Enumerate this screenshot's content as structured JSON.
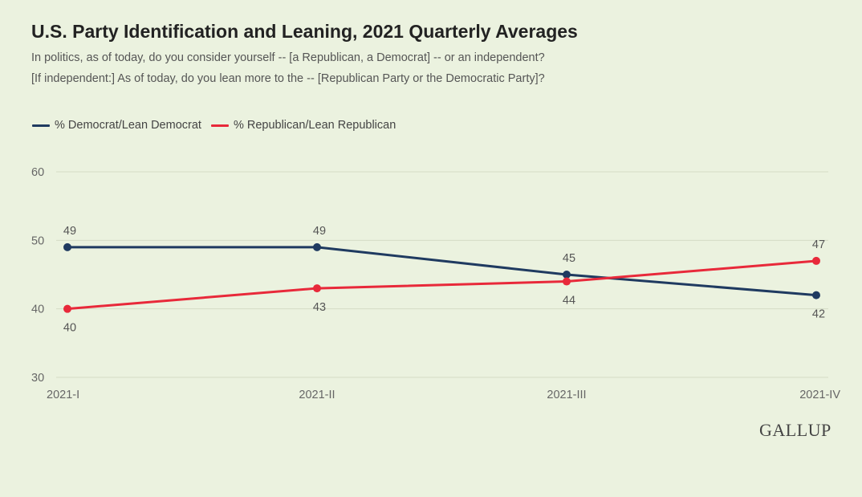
{
  "chart_data": {
    "type": "line",
    "title": "U.S. Party Identification and Leaning, 2021 Quarterly Averages",
    "subtitle": [
      "In politics, as of today, do you consider yourself -- [a Republican, a Democrat] -- or an independent?",
      "[If independent:] As of today, do you lean more to the -- [Republican Party or the Democratic Party]?"
    ],
    "categories": [
      "2021-I",
      "2021-II",
      "2021-III",
      "2021-IV"
    ],
    "series": [
      {
        "name": "% Democrat/Lean Democrat",
        "values": [
          49,
          49,
          45,
          42
        ],
        "color": "#1f3a60",
        "label_positions": [
          "above",
          "above",
          "above",
          "below"
        ]
      },
      {
        "name": "% Republican/Lean Republican",
        "values": [
          40,
          43,
          44,
          47
        ],
        "color": "#e8293a",
        "label_positions": [
          "below",
          "below",
          "below",
          "above"
        ]
      }
    ],
    "xlabel": "",
    "ylabel": "",
    "ylim": [
      30,
      60
    ],
    "yticks": [
      30,
      40,
      50,
      60
    ],
    "grid": true,
    "legend": "top-left"
  },
  "branding": {
    "logo_text": "GALLUP"
  },
  "colors": {
    "background": "#ebf2df",
    "gridline": "#d4dcc6",
    "democrat": "#1f3a60",
    "republican": "#e8293a"
  }
}
